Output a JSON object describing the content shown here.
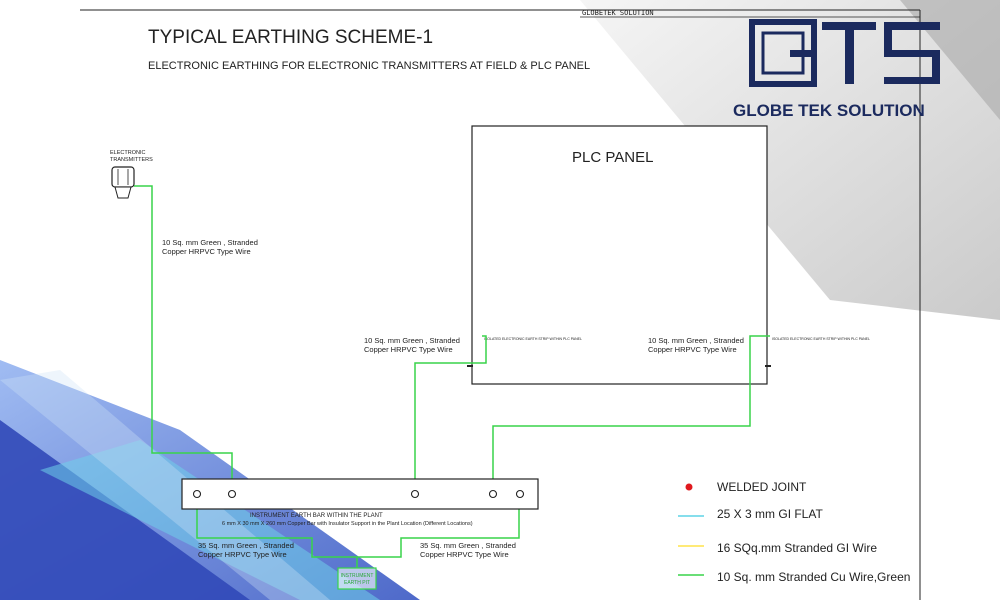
{
  "drawing": {
    "title": "TYPICAL EARTHING SCHEME-1",
    "subtitle": "ELECTRONIC EARTHING FOR ELECTRONIC TRANSMITTERS AT FIELD & PLC PANEL",
    "header_stamp": "GLOBETEK SOLUTION"
  },
  "brand": {
    "logo_text": "GTS",
    "name": "GLOBE TEK SOLUTION",
    "color": "#1b2a5e"
  },
  "transmitter": {
    "label_line1": "ELECTRONIC",
    "label_line2": "TRANSMITTERS"
  },
  "plc_panel": {
    "title": "PLC PANEL",
    "left_strip_note": "ISOLATED ELECTRONIC EARTH STRIP WITHIN PLC PANEL",
    "right_strip_note": "ISOLATED ELECTRONIC EARTH STRIP WITHIN PLC PANEL"
  },
  "wire_labels": {
    "transmitter_line1": "10 Sq. mm Green , Stranded",
    "transmitter_line2": "Copper HRPVC Type Wire",
    "plc_left_line1": "10 Sq. mm Green , Stranded",
    "plc_left_line2": "Copper HRPVC Type Wire",
    "plc_right_line1": "10 Sq. mm Green , Stranded",
    "plc_right_line2": "Copper HRPVC Type Wire",
    "pit_left_line1": "35 Sq. mm Green , Stranded",
    "pit_left_line2": "Copper HRPVC Type Wire",
    "pit_right_line1": "35 Sq. mm Green , Stranded",
    "pit_right_line2": "Copper HRPVC Type Wire"
  },
  "earth_bar": {
    "label_line1": "INSTRUMENT EARTH BAR WITHIN THE PLANT",
    "label_line2": "6 mm X 30 mm X 260 mm Copper Bar with Insulator Support in the Plant Location (Different Locations)"
  },
  "earth_pit": {
    "label_line1": "INSTRUMENT",
    "label_line2": "EARTH PIT"
  },
  "legend": [
    {
      "label": "WELDED JOINT",
      "symbol": "dot",
      "color": "#e0191e"
    },
    {
      "label": "25 X 3 mm GI FLAT",
      "symbol": "line",
      "color": "#5fd3e6"
    },
    {
      "label": "16 SQq.mm Stranded GI Wire",
      "symbol": "line",
      "color": "#ffe34a"
    },
    {
      "label": "10 Sq. mm Stranded Cu Wire,Green",
      "symbol": "line",
      "color": "#38d44a"
    }
  ],
  "colors": {
    "green_wire": "#38d44a",
    "frame": "#222222",
    "deco_blue": "#3a56c4"
  }
}
